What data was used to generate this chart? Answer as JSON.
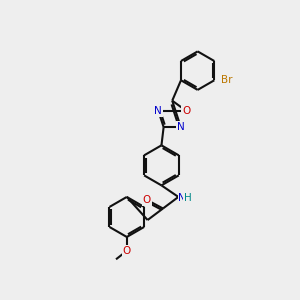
{
  "bg_color": "#eeeeee",
  "bond_color": "#111111",
  "atom_colors": {
    "N": "#0000cc",
    "O": "#cc0000",
    "Br": "#bb7700",
    "NH_N": "#0000cc",
    "NH_H": "#008888",
    "C": "#111111"
  },
  "lw": 1.5,
  "doff": 2.3,
  "fs": 7.5
}
